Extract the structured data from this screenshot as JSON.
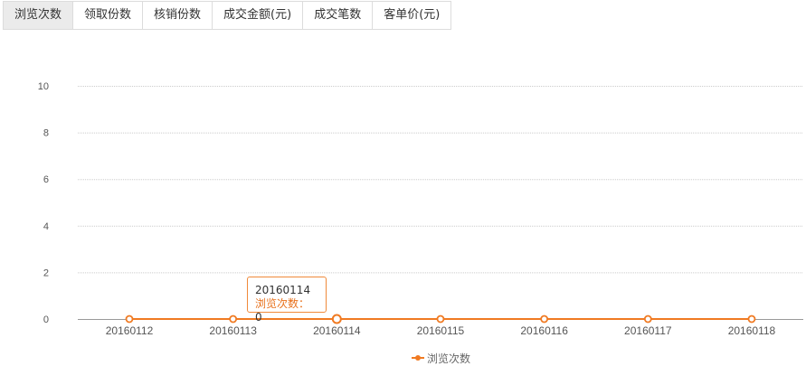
{
  "tabs": [
    {
      "label": "浏览次数",
      "active": true
    },
    {
      "label": "领取份数",
      "active": false
    },
    {
      "label": "核销份数",
      "active": false
    },
    {
      "label": "成交金额(元)",
      "active": false
    },
    {
      "label": "成交笔数",
      "active": false
    },
    {
      "label": "客单价(元)",
      "active": false
    }
  ],
  "tooltip": {
    "date": "20160114",
    "series_label": "浏览次数：",
    "value": "0"
  },
  "colors": {
    "series": "#f07a22",
    "grid": "#cccccc",
    "axis": "#999999",
    "tick_text": "#555555"
  },
  "chart_data": {
    "type": "line",
    "categories": [
      "20160112",
      "20160113",
      "20160114",
      "20160115",
      "20160116",
      "20160117",
      "20160118"
    ],
    "series": [
      {
        "name": "浏览次数",
        "values": [
          0,
          0,
          0,
          0,
          0,
          0,
          0
        ]
      }
    ],
    "yticks": [
      "0",
      "2",
      "4",
      "6",
      "8",
      "10"
    ],
    "ylim": [
      0,
      10
    ],
    "grid": true,
    "legend": "bottom-center",
    "highlighted_index": 2
  }
}
